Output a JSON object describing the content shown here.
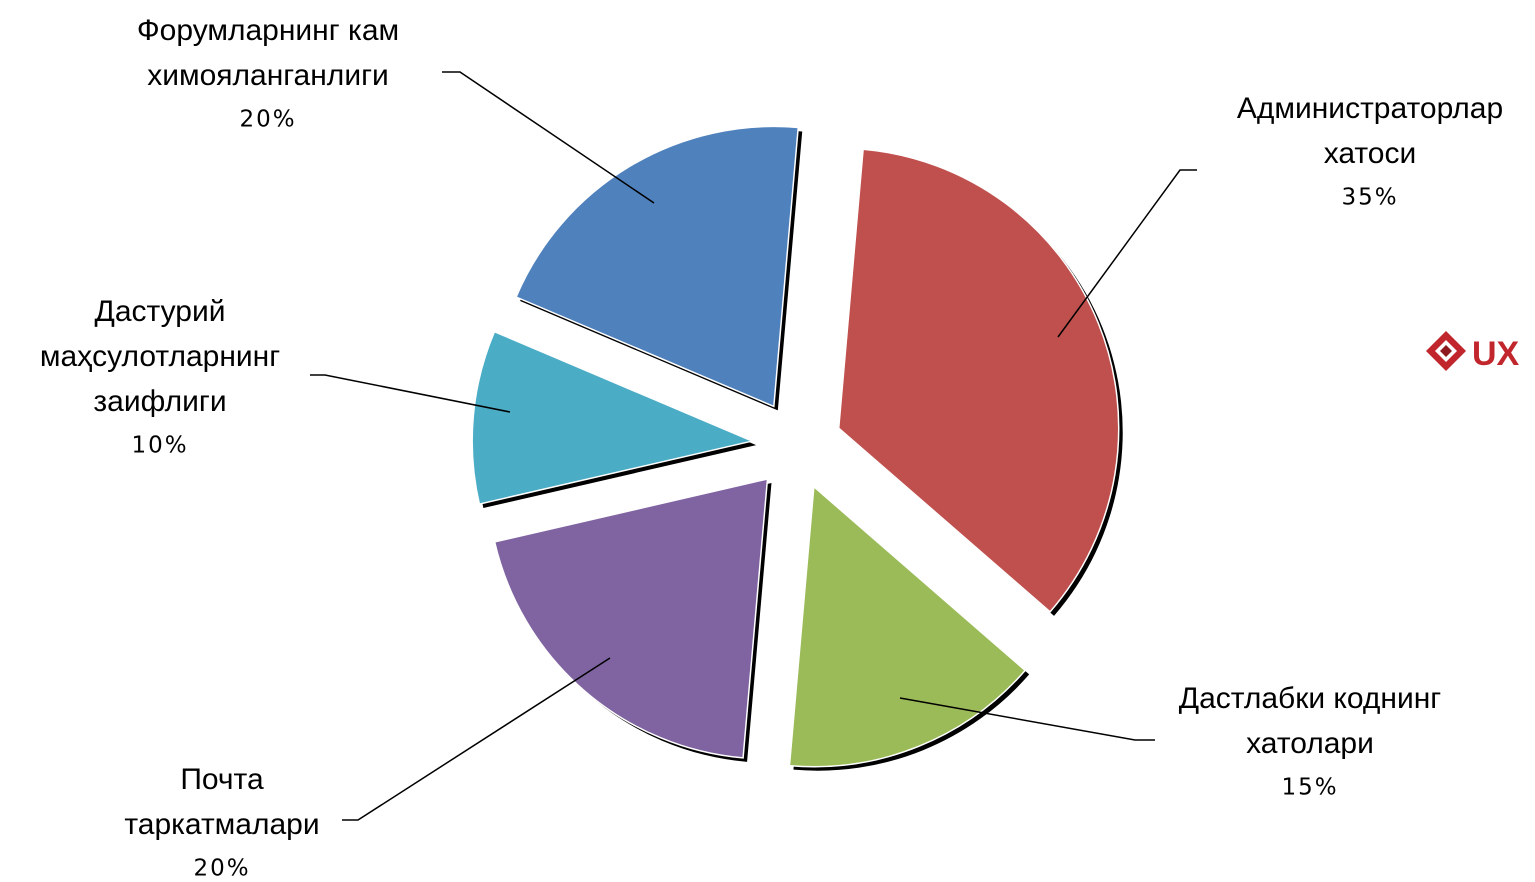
{
  "chart_data": {
    "type": "pie",
    "style": "exploded",
    "slices": [
      {
        "label_lines": [
          "Администраторлар",
          "хатоси"
        ],
        "value": 35,
        "percent_label": "35%",
        "color": "#c0504d"
      },
      {
        "label_lines": [
          "Дастлабки коднинг",
          "хатолари"
        ],
        "value": 15,
        "percent_label": "15%",
        "color": "#9bbb59"
      },
      {
        "label_lines": [
          "Почта",
          "таркатмалари"
        ],
        "value": 20,
        "percent_label": "20%",
        "color": "#8064a2"
      },
      {
        "label_lines": [
          "Дастурий",
          "маҳсулотларнинг",
          "заифлиги"
        ],
        "value": 10,
        "percent_label": "10%",
        "color": "#4bacc6"
      },
      {
        "label_lines": [
          "Форумларнинг кам",
          "химояланганлиги"
        ],
        "value": 20,
        "percent_label": "20%",
        "color": "#4f81bd"
      }
    ]
  },
  "watermark": {
    "text": "UX",
    "icon": "diamond-logo-icon",
    "color": "#c0262c"
  }
}
